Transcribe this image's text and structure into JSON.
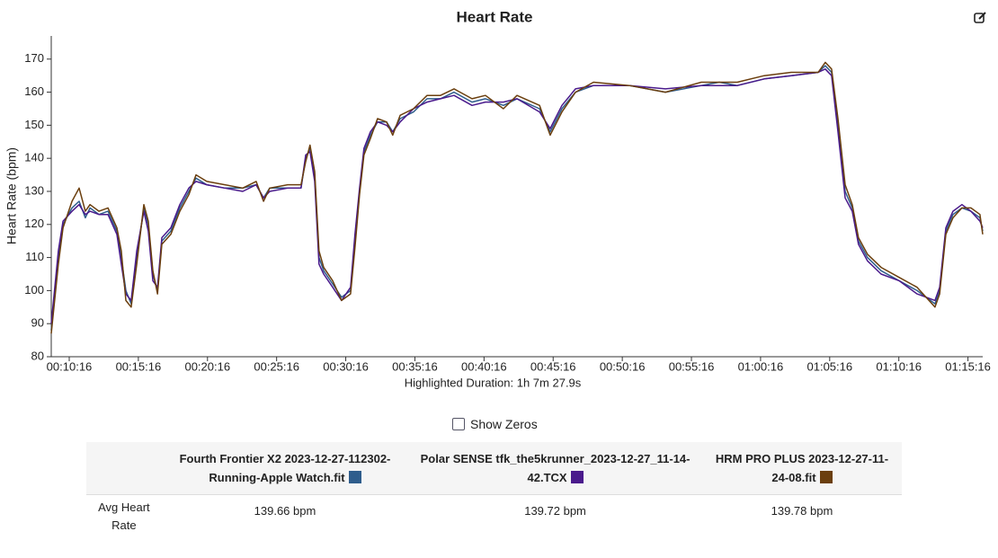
{
  "chart_data": {
    "type": "line",
    "title": "Heart Rate",
    "ylabel": "Heart Rate (bpm)",
    "subtitle": "Highlighted Duration: 1h 7m 27.9s",
    "x": [
      538,
      569,
      589,
      628,
      659,
      686,
      706,
      745,
      784,
      823,
      842,
      862,
      885,
      909,
      940,
      959,
      979,
      999,
      1018,
      1057,
      1096,
      1135,
      1166,
      1213,
      1291,
      1369,
      1427,
      1459,
      1486,
      1564,
      1622,
      1642,
      1661,
      1681,
      1700,
      1720,
      1759,
      1798,
      1837,
      1856,
      1876,
      1895,
      1923,
      1954,
      1993,
      2020,
      2052,
      2110,
      2169,
      2227,
      2286,
      2364,
      2422,
      2500,
      2559,
      2657,
      2703,
      2754,
      2813,
      2891,
      3047,
      3203,
      3359,
      3437,
      3515,
      3632,
      3749,
      3866,
      3897,
      3924,
      3952,
      3983,
      4014,
      4041,
      4080,
      4139,
      4217,
      4295,
      4373,
      4393,
      4420,
      4451,
      4490,
      4529,
      4568,
      4580
    ],
    "series": [
      {
        "name": "Fourth Frontier X2 2023-12-27-112302-Running-Apple Watch.fit",
        "color": "#2f5d8c",
        "values": [
          88,
          110,
          120,
          125,
          127,
          122,
          125,
          123,
          124,
          118,
          110,
          100,
          96,
          110,
          125,
          120,
          105,
          100,
          115,
          118,
          125,
          130,
          134,
          132,
          131,
          131,
          132,
          128,
          131,
          131,
          131,
          140,
          143,
          135,
          110,
          106,
          102,
          98,
          100,
          115,
          130,
          142,
          147,
          151,
          151,
          148,
          152,
          154,
          158,
          158,
          160,
          157,
          158,
          156,
          158,
          155,
          148,
          155,
          160,
          162,
          162,
          160,
          162,
          163,
          162,
          164,
          165,
          166,
          168,
          166,
          150,
          130,
          125,
          115,
          110,
          106,
          103,
          100,
          96,
          100,
          118,
          123,
          125,
          124,
          122,
          118
        ]
      },
      {
        "name": "Polar SENSE tfk_the5krunner_2023-12-27_11-14-42.TCX",
        "color": "#4a1a8c",
        "values": [
          90,
          112,
          121,
          124,
          126,
          123,
          124,
          123,
          123,
          117,
          108,
          99,
          97,
          112,
          124,
          118,
          103,
          101,
          116,
          119,
          126,
          131,
          133,
          132,
          131,
          130,
          132,
          128,
          130,
          131,
          131,
          141,
          142,
          133,
          108,
          105,
          101,
          97,
          101,
          117,
          131,
          143,
          148,
          151,
          150,
          148,
          151,
          155,
          157,
          158,
          159,
          156,
          157,
          157,
          158,
          154,
          149,
          156,
          161,
          162,
          162,
          161,
          162,
          162,
          162,
          164,
          165,
          166,
          167,
          165,
          148,
          128,
          124,
          114,
          109,
          105,
          103,
          99,
          97,
          101,
          119,
          124,
          126,
          124,
          121,
          119
        ]
      },
      {
        "name": "HRM PRO PLUS 2023-12-27-11-24-08.fit",
        "color": "#6b3f0e",
        "values": [
          87,
          108,
          119,
          127,
          131,
          124,
          126,
          124,
          125,
          119,
          112,
          97,
          95,
          108,
          126,
          121,
          106,
          99,
          114,
          117,
          124,
          129,
          135,
          133,
          132,
          131,
          133,
          127,
          131,
          132,
          132,
          139,
          144,
          136,
          112,
          107,
          103,
          97,
          99,
          113,
          129,
          141,
          146,
          152,
          151,
          147,
          153,
          155,
          159,
          159,
          161,
          158,
          159,
          155,
          159,
          156,
          147,
          154,
          160,
          163,
          162,
          160,
          163,
          163,
          163,
          165,
          166,
          166,
          169,
          167,
          152,
          132,
          126,
          116,
          111,
          107,
          104,
          101,
          95,
          99,
          117,
          122,
          125,
          125,
          123,
          117
        ]
      }
    ],
    "xlim": [
      538,
      4580
    ],
    "xticks": [
      {
        "value": 616,
        "label": "00:10:16"
      },
      {
        "value": 916,
        "label": "00:15:16"
      },
      {
        "value": 1216,
        "label": "00:20:16"
      },
      {
        "value": 1516,
        "label": "00:25:16"
      },
      {
        "value": 1816,
        "label": "00:30:16"
      },
      {
        "value": 2116,
        "label": "00:35:16"
      },
      {
        "value": 2416,
        "label": "00:40:16"
      },
      {
        "value": 2716,
        "label": "00:45:16"
      },
      {
        "value": 3016,
        "label": "00:50:16"
      },
      {
        "value": 3316,
        "label": "00:55:16"
      },
      {
        "value": 3616,
        "label": "01:00:16"
      },
      {
        "value": 3916,
        "label": "01:05:16"
      },
      {
        "value": 4216,
        "label": "01:10:16"
      },
      {
        "value": 4516,
        "label": "01:15:16"
      }
    ],
    "ylim": [
      80,
      177
    ],
    "yticks": [
      80,
      90,
      100,
      110,
      120,
      130,
      140,
      150,
      160,
      170
    ],
    "grid": false
  },
  "controls": {
    "show_zeros": "Show Zeros"
  },
  "table": {
    "row_label": "Avg Heart Rate",
    "values": [
      "139.66 bpm",
      "139.72 bpm",
      "139.78 bpm"
    ]
  }
}
